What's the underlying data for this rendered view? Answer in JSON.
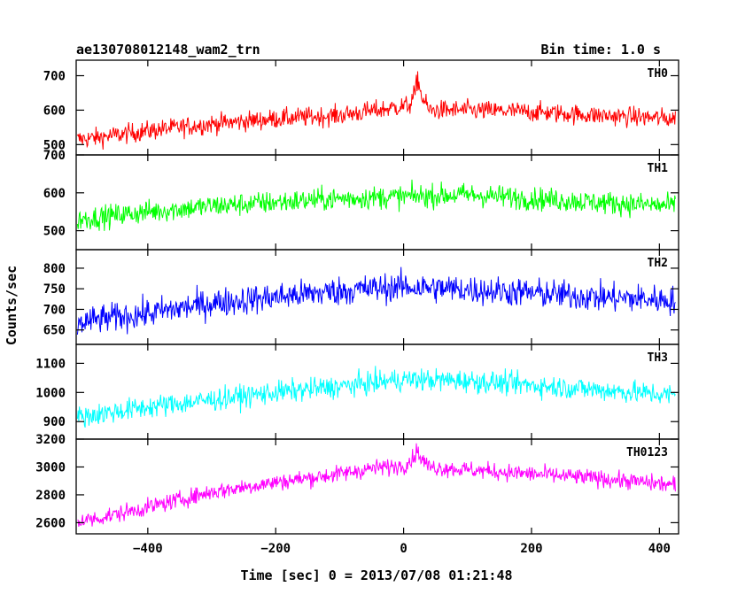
{
  "header": {
    "title": "ae130708012148_wam2_trn",
    "bin_time": "Bin time: 1.0 s"
  },
  "axes": {
    "xlabel": "Time [sec] 0 = 2013/07/08 01:21:48",
    "ylabel": "Counts/sec"
  },
  "chart_data": {
    "type": "line",
    "title": "ae130708012148_wam2_trn",
    "xlabel": "Time [sec] 0 = 2013/07/08 01:21:48",
    "ylabel": "Counts/sec",
    "xlim": [
      -512,
      430
    ],
    "x_ticks": [
      -400,
      -200,
      0,
      200,
      400
    ],
    "bin_time_s": 1.0,
    "panels": [
      {
        "name": "TH0",
        "color": "#ff0000",
        "ylim": [
          470,
          745
        ],
        "y_ticks": [
          500,
          600,
          700
        ],
        "trend": [
          [
            -510,
            515
          ],
          [
            -480,
            520
          ],
          [
            -400,
            540
          ],
          [
            -300,
            560
          ],
          [
            -200,
            575
          ],
          [
            -100,
            585
          ],
          [
            -40,
            600
          ],
          [
            10,
            615
          ],
          [
            18,
            650
          ],
          [
            22,
            695
          ],
          [
            28,
            640
          ],
          [
            40,
            600
          ],
          [
            100,
            600
          ],
          [
            200,
            595
          ],
          [
            300,
            585
          ],
          [
            425,
            575
          ]
        ],
        "noise": 28
      },
      {
        "name": "TH1",
        "color": "#00ff00",
        "ylim": [
          450,
          700
        ],
        "y_ticks": [
          500,
          600,
          700
        ],
        "trend": [
          [
            -510,
            530
          ],
          [
            -480,
            535
          ],
          [
            -400,
            550
          ],
          [
            -300,
            565
          ],
          [
            -200,
            575
          ],
          [
            -100,
            585
          ],
          [
            0,
            590
          ],
          [
            100,
            595
          ],
          [
            200,
            585
          ],
          [
            300,
            575
          ],
          [
            425,
            565
          ]
        ],
        "noise": 30
      },
      {
        "name": "TH2",
        "color": "#0000ff",
        "ylim": [
          615,
          845
        ],
        "y_ticks": [
          650,
          700,
          750,
          800
        ],
        "trend": [
          [
            -510,
            665
          ],
          [
            -480,
            675
          ],
          [
            -400,
            690
          ],
          [
            -300,
            715
          ],
          [
            -200,
            730
          ],
          [
            -100,
            745
          ],
          [
            0,
            755
          ],
          [
            100,
            748
          ],
          [
            200,
            740
          ],
          [
            300,
            730
          ],
          [
            425,
            722
          ]
        ],
        "noise": 35
      },
      {
        "name": "TH3",
        "color": "#00ffff",
        "ylim": [
          840,
          1165
        ],
        "y_ticks": [
          900,
          1000,
          1100
        ],
        "trend": [
          [
            -510,
            915
          ],
          [
            -480,
            925
          ],
          [
            -400,
            950
          ],
          [
            -300,
            975
          ],
          [
            -200,
            1000
          ],
          [
            -100,
            1020
          ],
          [
            0,
            1045
          ],
          [
            100,
            1040
          ],
          [
            200,
            1025
          ],
          [
            300,
            1010
          ],
          [
            425,
            990
          ]
        ],
        "noise": 38
      },
      {
        "name": "TH0123",
        "color": "#ff00ff",
        "ylim": [
          2520,
          3200
        ],
        "y_ticks": [
          2600,
          2800,
          3000,
          3200
        ],
        "trend": [
          [
            -510,
            2610
          ],
          [
            -480,
            2630
          ],
          [
            -400,
            2710
          ],
          [
            -300,
            2820
          ],
          [
            -200,
            2890
          ],
          [
            -100,
            2950
          ],
          [
            -50,
            2990
          ],
          [
            0,
            3010
          ],
          [
            15,
            3060
          ],
          [
            20,
            3120
          ],
          [
            28,
            3060
          ],
          [
            40,
            3000
          ],
          [
            100,
            2980
          ],
          [
            200,
            2950
          ],
          [
            300,
            2920
          ],
          [
            425,
            2870
          ]
        ],
        "noise": 60
      }
    ]
  }
}
